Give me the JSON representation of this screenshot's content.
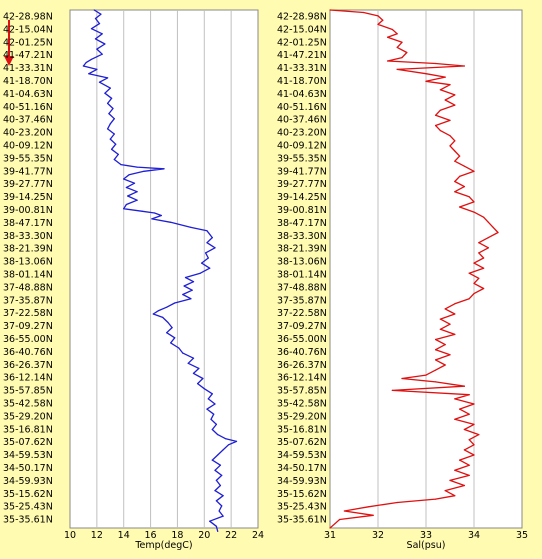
{
  "chart_data": [
    {
      "type": "line",
      "xlabel": "Temp(degC)",
      "xlim": [
        10,
        24
      ],
      "xticks": [
        10,
        12,
        14,
        16,
        18,
        20,
        22,
        24
      ],
      "grid": true,
      "series": [
        {
          "color": "#1f1fd6",
          "points": [
            [
              11.8,
              0.0
            ],
            [
              12.3,
              0.5
            ],
            [
              11.9,
              1.0
            ],
            [
              12.2,
              1.6
            ],
            [
              11.6,
              2.2
            ],
            [
              12.4,
              2.8
            ],
            [
              11.9,
              3.4
            ],
            [
              12.6,
              4.0
            ],
            [
              12.0,
              4.6
            ],
            [
              12.4,
              5.2
            ],
            [
              11.6,
              5.8
            ],
            [
              11.2,
              6.2
            ],
            [
              11.0,
              6.6
            ],
            [
              12.0,
              7.0
            ],
            [
              11.4,
              7.5
            ],
            [
              12.8,
              8.0
            ],
            [
              12.2,
              8.5
            ],
            [
              13.0,
              9.2
            ],
            [
              12.6,
              9.8
            ],
            [
              13.1,
              10.4
            ],
            [
              12.8,
              11.0
            ],
            [
              13.2,
              11.6
            ],
            [
              12.9,
              12.2
            ],
            [
              13.3,
              12.8
            ],
            [
              13.0,
              13.4
            ],
            [
              12.8,
              14.0
            ],
            [
              13.3,
              14.6
            ],
            [
              13.0,
              15.2
            ],
            [
              13.4,
              15.8
            ],
            [
              13.1,
              16.4
            ],
            [
              13.6,
              17.0
            ],
            [
              13.3,
              17.6
            ],
            [
              13.8,
              18.2
            ],
            [
              15.0,
              18.5
            ],
            [
              17.0,
              18.7
            ],
            [
              15.5,
              19.0
            ],
            [
              14.4,
              19.4
            ],
            [
              14.0,
              19.9
            ],
            [
              14.8,
              20.4
            ],
            [
              14.2,
              20.9
            ],
            [
              15.0,
              21.4
            ],
            [
              14.3,
              21.9
            ],
            [
              15.0,
              22.4
            ],
            [
              14.2,
              22.9
            ],
            [
              14.0,
              23.4
            ],
            [
              15.4,
              23.7
            ],
            [
              16.3,
              23.9
            ],
            [
              16.8,
              24.2
            ],
            [
              16.1,
              24.6
            ],
            [
              17.5,
              25.0
            ],
            [
              19.0,
              25.6
            ],
            [
              20.2,
              26.0
            ],
            [
              20.6,
              26.8
            ],
            [
              20.2,
              27.4
            ],
            [
              20.8,
              28.0
            ],
            [
              20.1,
              28.6
            ],
            [
              20.3,
              29.2
            ],
            [
              19.8,
              29.8
            ],
            [
              20.4,
              30.4
            ],
            [
              19.7,
              31.0
            ],
            [
              18.6,
              31.5
            ],
            [
              19.2,
              32.0
            ],
            [
              18.5,
              32.5
            ],
            [
              19.1,
              33.0
            ],
            [
              18.4,
              33.5
            ],
            [
              19.0,
              34.0
            ],
            [
              17.8,
              34.5
            ],
            [
              17.2,
              35.0
            ],
            [
              16.6,
              35.4
            ],
            [
              16.2,
              35.8
            ],
            [
              16.9,
              36.2
            ],
            [
              17.3,
              36.8
            ],
            [
              17.6,
              37.4
            ],
            [
              17.2,
              38.0
            ],
            [
              17.8,
              38.6
            ],
            [
              17.5,
              39.2
            ],
            [
              18.1,
              39.8
            ],
            [
              18.4,
              40.4
            ],
            [
              19.2,
              41.0
            ],
            [
              18.8,
              41.6
            ],
            [
              19.6,
              42.2
            ],
            [
              19.2,
              42.8
            ],
            [
              19.9,
              43.4
            ],
            [
              19.5,
              44.0
            ],
            [
              20.0,
              44.6
            ],
            [
              20.6,
              45.2
            ],
            [
              20.3,
              45.8
            ],
            [
              20.8,
              46.4
            ],
            [
              20.2,
              47.0
            ],
            [
              20.7,
              47.6
            ],
            [
              20.5,
              48.2
            ],
            [
              20.9,
              48.8
            ],
            [
              20.6,
              49.4
            ],
            [
              21.0,
              50.0
            ],
            [
              21.6,
              50.5
            ],
            [
              22.4,
              50.8
            ],
            [
              21.8,
              51.2
            ],
            [
              21.4,
              51.8
            ],
            [
              21.0,
              52.4
            ],
            [
              20.6,
              53.0
            ],
            [
              21.2,
              53.6
            ],
            [
              20.8,
              54.2
            ],
            [
              21.3,
              54.8
            ],
            [
              20.9,
              55.4
            ],
            [
              21.2,
              56.0
            ],
            [
              20.8,
              56.6
            ],
            [
              21.4,
              57.2
            ],
            [
              20.9,
              57.8
            ],
            [
              21.3,
              58.4
            ],
            [
              21.1,
              59.0
            ],
            [
              21.4,
              59.6
            ],
            [
              20.4,
              60.2
            ],
            [
              20.9,
              60.8
            ],
            [
              21.0,
              61.4
            ]
          ]
        }
      ]
    },
    {
      "type": "line",
      "xlabel": "Sal(psu)",
      "xlim": [
        31,
        35
      ],
      "xticks": [
        31,
        32,
        33,
        34,
        35
      ],
      "grid": true,
      "series": [
        {
          "color": "#e01010",
          "points": [
            [
              31.0,
              0.0
            ],
            [
              31.7,
              0.3
            ],
            [
              32.0,
              0.7
            ],
            [
              32.1,
              1.2
            ],
            [
              32.0,
              1.7
            ],
            [
              32.3,
              2.3
            ],
            [
              32.4,
              2.8
            ],
            [
              32.2,
              3.2
            ],
            [
              32.5,
              3.8
            ],
            [
              32.4,
              4.4
            ],
            [
              32.6,
              5.0
            ],
            [
              32.5,
              5.6
            ],
            [
              32.2,
              6.0
            ],
            [
              33.2,
              6.3
            ],
            [
              33.8,
              6.6
            ],
            [
              32.4,
              7.0
            ],
            [
              33.0,
              7.5
            ],
            [
              33.4,
              7.9
            ],
            [
              33.0,
              8.4
            ],
            [
              33.5,
              8.8
            ],
            [
              33.3,
              9.4
            ],
            [
              33.6,
              10.0
            ],
            [
              33.4,
              10.6
            ],
            [
              33.6,
              11.2
            ],
            [
              33.3,
              11.8
            ],
            [
              33.2,
              12.4
            ],
            [
              33.5,
              13.0
            ],
            [
              33.2,
              13.6
            ],
            [
              33.3,
              14.2
            ],
            [
              33.5,
              14.8
            ],
            [
              33.6,
              15.4
            ],
            [
              33.5,
              16.0
            ],
            [
              33.6,
              16.6
            ],
            [
              33.7,
              17.2
            ],
            [
              33.6,
              17.8
            ],
            [
              33.8,
              18.4
            ],
            [
              34.0,
              19.0
            ],
            [
              33.7,
              19.6
            ],
            [
              33.6,
              20.2
            ],
            [
              33.8,
              20.8
            ],
            [
              33.6,
              21.4
            ],
            [
              33.9,
              22.0
            ],
            [
              34.0,
              22.6
            ],
            [
              33.7,
              23.2
            ],
            [
              34.0,
              23.8
            ],
            [
              34.2,
              24.4
            ],
            [
              34.3,
              25.0
            ],
            [
              34.4,
              25.6
            ],
            [
              34.5,
              26.2
            ],
            [
              34.3,
              26.8
            ],
            [
              34.1,
              27.4
            ],
            [
              34.3,
              28.0
            ],
            [
              34.1,
              28.6
            ],
            [
              34.2,
              29.2
            ],
            [
              34.0,
              29.8
            ],
            [
              34.2,
              30.4
            ],
            [
              33.9,
              31.0
            ],
            [
              34.1,
              31.6
            ],
            [
              34.0,
              32.2
            ],
            [
              34.2,
              32.8
            ],
            [
              34.0,
              33.4
            ],
            [
              33.9,
              34.0
            ],
            [
              33.6,
              34.6
            ],
            [
              33.4,
              35.2
            ],
            [
              33.6,
              35.8
            ],
            [
              33.3,
              36.4
            ],
            [
              33.5,
              37.0
            ],
            [
              33.3,
              37.6
            ],
            [
              33.6,
              38.2
            ],
            [
              33.2,
              38.8
            ],
            [
              33.4,
              39.4
            ],
            [
              33.2,
              40.0
            ],
            [
              33.5,
              40.6
            ],
            [
              33.2,
              41.2
            ],
            [
              33.4,
              41.8
            ],
            [
              33.2,
              42.4
            ],
            [
              33.0,
              43.0
            ],
            [
              32.5,
              43.4
            ],
            [
              33.2,
              43.8
            ],
            [
              33.8,
              44.3
            ],
            [
              32.3,
              44.8
            ],
            [
              33.9,
              45.3
            ],
            [
              33.6,
              45.8
            ],
            [
              34.0,
              46.4
            ],
            [
              33.7,
              47.0
            ],
            [
              33.9,
              47.6
            ],
            [
              33.6,
              48.2
            ],
            [
              34.0,
              48.8
            ],
            [
              33.8,
              49.4
            ],
            [
              34.1,
              50.0
            ],
            [
              33.9,
              50.6
            ],
            [
              34.0,
              51.2
            ],
            [
              33.8,
              51.8
            ],
            [
              34.0,
              52.4
            ],
            [
              33.7,
              53.0
            ],
            [
              33.9,
              53.6
            ],
            [
              33.6,
              54.2
            ],
            [
              33.9,
              54.8
            ],
            [
              33.5,
              55.4
            ],
            [
              33.8,
              56.0
            ],
            [
              33.4,
              56.6
            ],
            [
              33.6,
              57.2
            ],
            [
              33.2,
              57.6
            ],
            [
              32.4,
              58.0
            ],
            [
              31.8,
              58.5
            ],
            [
              31.3,
              59.0
            ],
            [
              31.9,
              59.5
            ],
            [
              31.2,
              60.0
            ],
            [
              31.1,
              60.5
            ],
            [
              31.0,
              61.0
            ]
          ]
        }
      ]
    }
  ],
  "latitude_labels": [
    "42-28.98N",
    "42-15.04N",
    "42-01.25N",
    "41-47.21N",
    "41-33.31N",
    "41-18.70N",
    "41-04.63N",
    "40-51.16N",
    "40-37.46N",
    "40-23.20N",
    "40-09.12N",
    "39-55.35N",
    "39-41.77N",
    "39-27.77N",
    "39-14.25N",
    "39-00.81N",
    "38-47.17N",
    "38-33.30N",
    "38-21.39N",
    "38-13.06N",
    "38-01.14N",
    "37-48.88N",
    "37-35.87N",
    "37-22.58N",
    "37-09.27N",
    "36-55.00N",
    "36-40.76N",
    "36-26.37N",
    "36-12.14N",
    "35-57.85N",
    "35-42.58N",
    "35-29.20N",
    "35-16.81N",
    "35-07.62N",
    "34-59.53N",
    "34-50.17N",
    "34-59.93N",
    "35-15.62N",
    "35-25.43N",
    "35-35.61N"
  ],
  "colors": {
    "background": "#fffbb0",
    "grid": "#c0c0c0",
    "arrow": "#e01010"
  }
}
